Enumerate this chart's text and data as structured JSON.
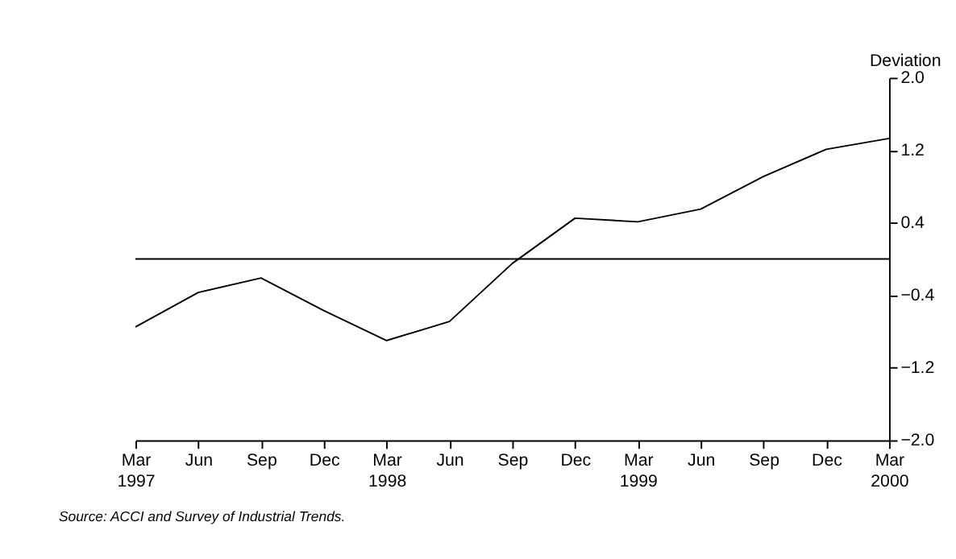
{
  "chart_data": {
    "type": "line",
    "ylabel": "Deviation",
    "categories": [
      "Mar 1997",
      "Jun",
      "Sep",
      "Dec",
      "Mar 1998",
      "Jun",
      "Sep",
      "Dec",
      "Mar 1999",
      "Jun",
      "Sep",
      "Dec",
      "Mar 2000"
    ],
    "series": [
      {
        "color": "#000000",
        "values": [
          -0.75,
          -0.37,
          -0.21,
          -0.57,
          -0.9,
          -0.69,
          -0.05,
          0.45,
          0.41,
          0.55,
          0.91,
          1.21,
          1.33
        ]
      }
    ],
    "ylim": [
      -2.0,
      2.0
    ],
    "yticks": [
      {
        "value": -2.0,
        "label": "−2.0"
      },
      {
        "value": -1.2,
        "label": "−1.2"
      },
      {
        "value": -0.4,
        "label": "−0.4"
      },
      {
        "value": 0.4,
        "label": "0.4"
      },
      {
        "value": 1.2,
        "label": "1.2"
      },
      {
        "value": 2.0,
        "label": "2.0"
      }
    ],
    "ref_lines": [
      {
        "axis": "y",
        "value": 0,
        "color": "#000000"
      }
    ],
    "grid": false,
    "marker": "none",
    "line_style": "solid",
    "annotations": [
      "Source: ACCI and Survey of Industrial Trends."
    ]
  }
}
